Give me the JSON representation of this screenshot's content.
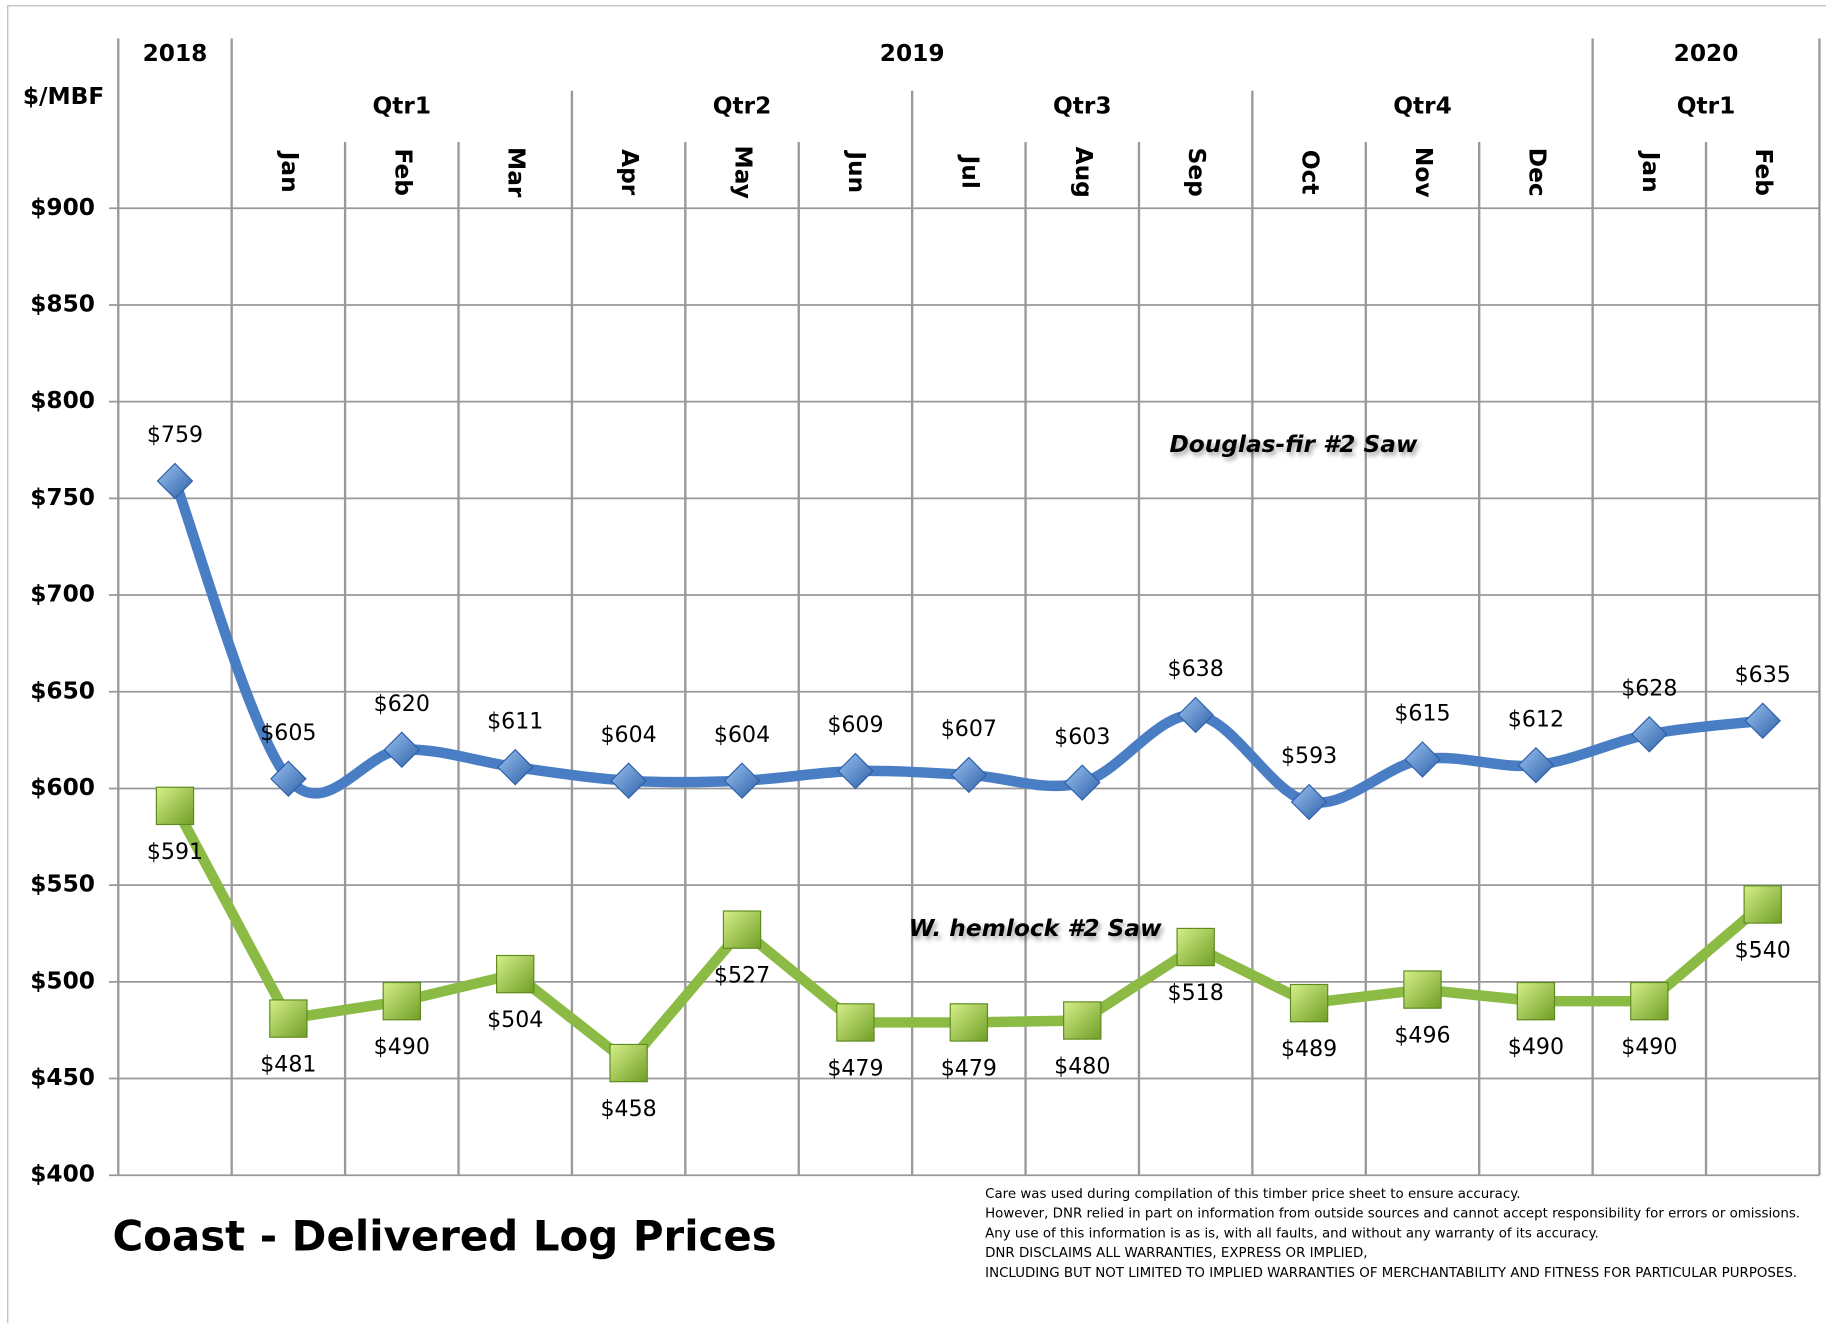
{
  "chart_data": {
    "type": "line",
    "title": "Coast - Delivered Log Prices",
    "y_label": "$/MBF",
    "categories": [
      null,
      "Jan",
      "Feb",
      "Mar",
      "Apr",
      "May",
      "Jun",
      "Jul",
      "Aug",
      "Sep",
      "Oct",
      "Nov",
      "Dec",
      "Jan",
      "Feb"
    ],
    "year_groups": [
      {
        "label": "2018",
        "start": 0,
        "end": 0
      },
      {
        "label": "2019",
        "start": 1,
        "end": 12
      },
      {
        "label": "2020",
        "start": 13,
        "end": 14
      }
    ],
    "quarter_groups": [
      {
        "label": "Qtr1",
        "start": 1,
        "end": 3
      },
      {
        "label": "Qtr2",
        "start": 4,
        "end": 6
      },
      {
        "label": "Qtr3",
        "start": 7,
        "end": 9
      },
      {
        "label": "Qtr4",
        "start": 10,
        "end": 12
      },
      {
        "label": "Qtr1",
        "start": 13,
        "end": 14
      }
    ],
    "series": [
      {
        "name": "Douglas-fir #2 Saw",
        "color": "#4a7ec4",
        "marker": "diamond",
        "smooth": true,
        "label_side": "above",
        "values": [
          759,
          605,
          620,
          611,
          604,
          604,
          609,
          607,
          603,
          638,
          593,
          615,
          612,
          628,
          635
        ],
        "value_labels": [
          "$759",
          "$605",
          "$620",
          "$611",
          "$604",
          "$604",
          "$609",
          "$607",
          "$603",
          "$638",
          "$593",
          "$615",
          "$612",
          "$628",
          "$635"
        ]
      },
      {
        "name": "W. hemlock  #2 Saw",
        "color": "#8cbb45",
        "marker": "square",
        "smooth": false,
        "label_side": "below",
        "values": [
          591,
          481,
          490,
          504,
          458,
          527,
          479,
          479,
          480,
          518,
          489,
          496,
          490,
          490,
          540
        ],
        "value_labels": [
          "$591",
          "$481",
          "$490",
          "$504",
          "$458",
          "$527",
          "$479",
          "$479",
          "$480",
          "$518",
          "$489",
          "$496",
          "$490",
          "$490",
          "$540"
        ]
      }
    ],
    "ylim": [
      400,
      900
    ],
    "yticks": [
      {
        "value": 400,
        "label": "$400"
      },
      {
        "value": 450,
        "label": "$450"
      },
      {
        "value": 500,
        "label": "$500"
      },
      {
        "value": 550,
        "label": "$550"
      },
      {
        "value": 600,
        "label": "$600"
      },
      {
        "value": 650,
        "label": "$650"
      },
      {
        "value": 700,
        "label": "$700"
      },
      {
        "value": 750,
        "label": "$750"
      },
      {
        "value": 800,
        "label": "$800"
      },
      {
        "value": 850,
        "label": "$850"
      },
      {
        "value": 900,
        "label": "$900"
      }
    ],
    "grid": true,
    "footnote": [
      "Care was used during compilation of this timber price sheet to ensure accuracy.",
      "However, DNR relied in part on information from outside sources and cannot accept responsibility for errors or omissions.",
      "Any use of this information is as is, with all faults, and without any warranty of its accuracy.",
      "DNR DISCLAIMS ALL WARRANTIES, EXPRESS OR IMPLIED,",
      "INCLUDING BUT NOT LIMITED TO IMPLIED WARRANTIES OF MERCHANTABILITY AND FITNESS FOR PARTICULAR PURPOSES."
    ]
  }
}
